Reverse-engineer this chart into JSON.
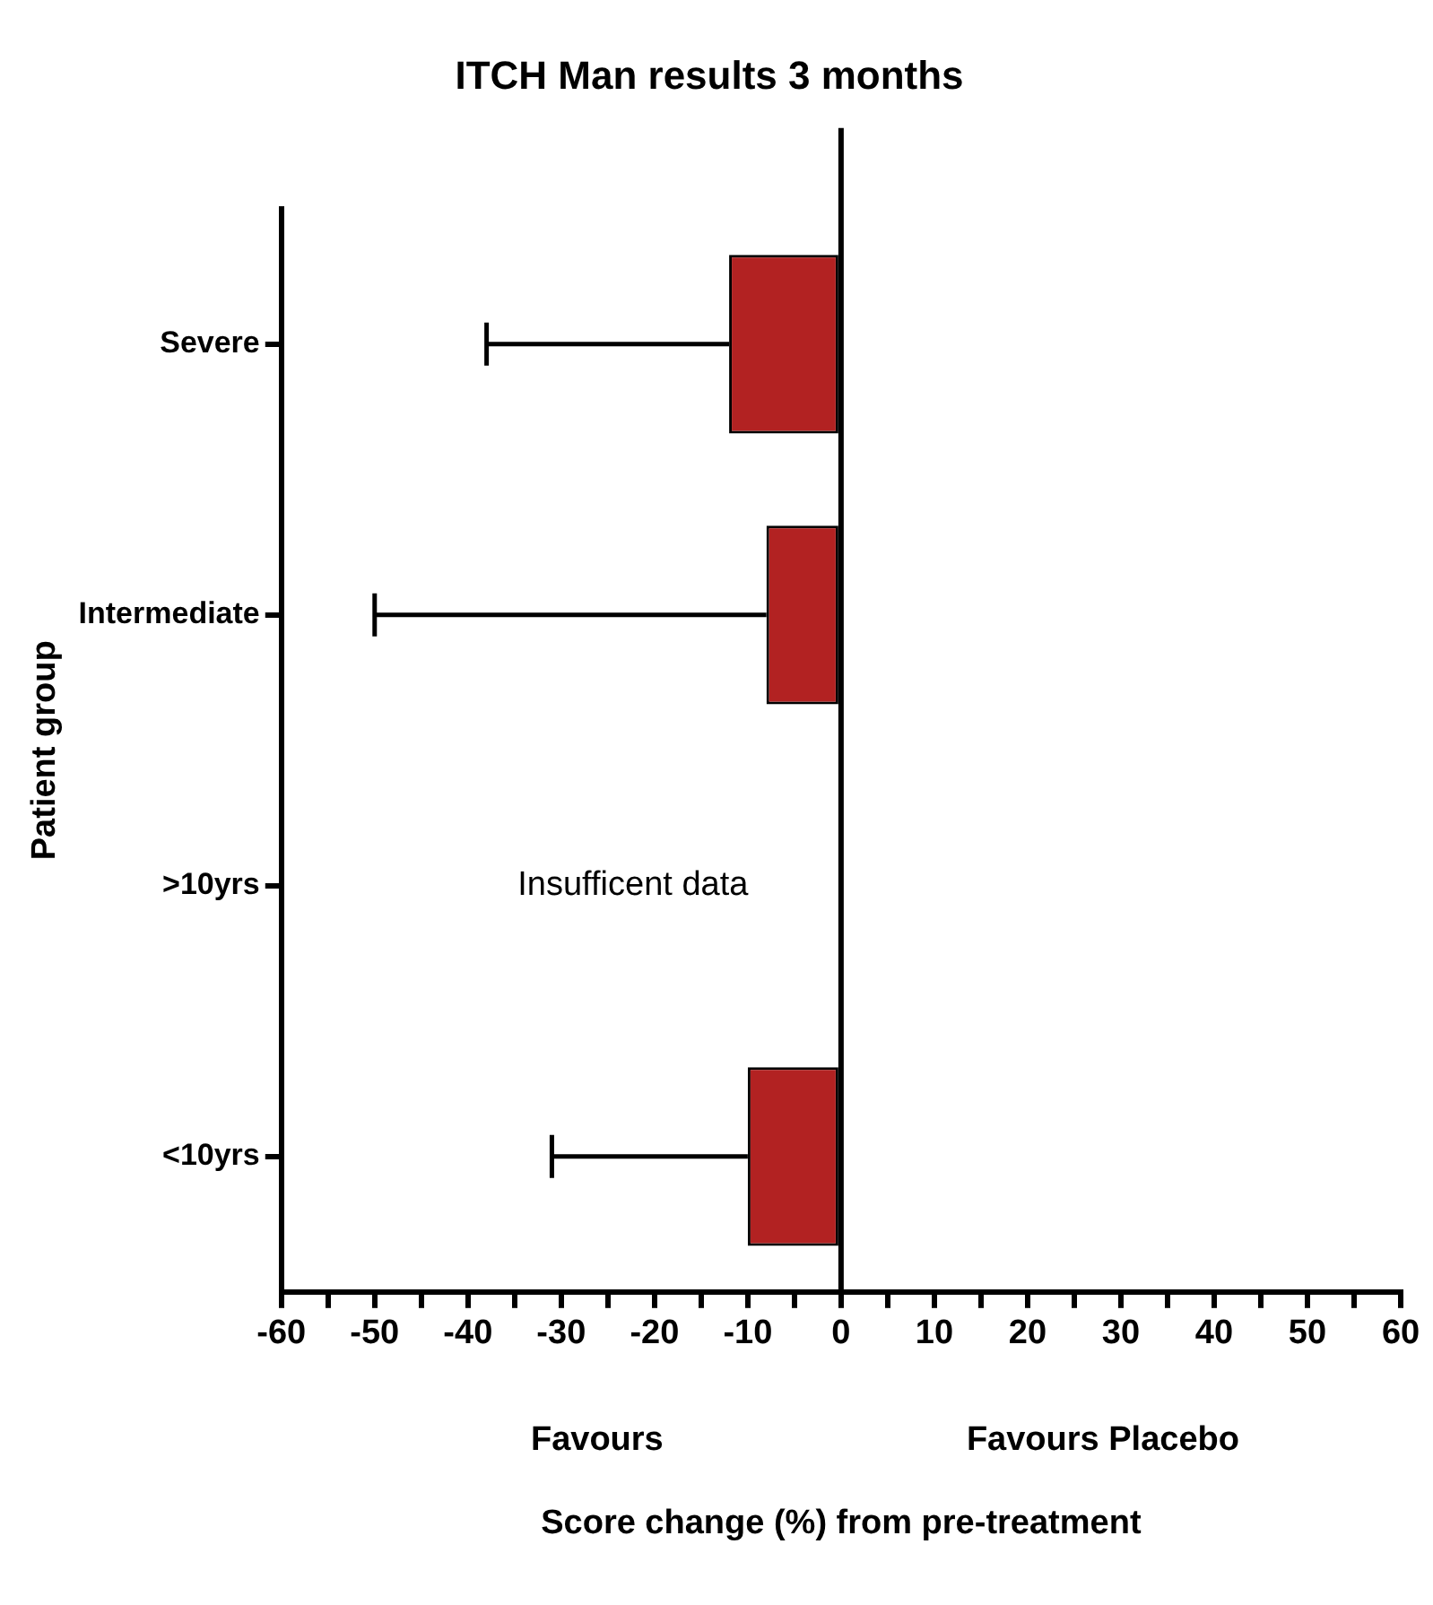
{
  "chart_data": {
    "type": "bar",
    "orientation": "horizontal",
    "title": "ITCH Man results 3 months",
    "xlabel": "Score change (%) from pre-treatment",
    "ylabel": "Patient group",
    "categories": [
      "Severe",
      "Intermediate",
      ">10yrs",
      "<10yrs"
    ],
    "values": [
      -12,
      -8,
      null,
      -10
    ],
    "errors": [
      [
        -38,
        -12
      ],
      [
        -50,
        -8
      ],
      null,
      [
        -31,
        -10
      ]
    ],
    "color": "#b22222",
    "xlim": [
      -60,
      60
    ],
    "xticks": [
      -60,
      {
        "value": -55,
        "label": null
      },
      -50,
      {
        "value": -45,
        "label": null
      },
      -40,
      {
        "value": -35,
        "label": null
      },
      -30,
      {
        "value": -25,
        "label": null
      },
      -20,
      {
        "value": -15,
        "label": null
      },
      -10,
      {
        "value": -5,
        "label": null
      },
      0,
      {
        "value": 5,
        "label": null
      },
      10,
      {
        "value": 15,
        "label": null
      },
      20,
      {
        "value": 25,
        "label": null
      },
      30,
      {
        "value": 35,
        "label": null
      },
      40,
      {
        "value": 45,
        "label": null
      },
      50,
      {
        "value": 55,
        "label": null
      },
      60
    ],
    "ref_lines": [
      {
        "axis": "x",
        "value": 0,
        "color": "#000000"
      }
    ],
    "annotations": [
      "Insufficent data",
      "Favours",
      "Favours Placebo"
    ],
    "grid": false,
    "legend": false
  }
}
